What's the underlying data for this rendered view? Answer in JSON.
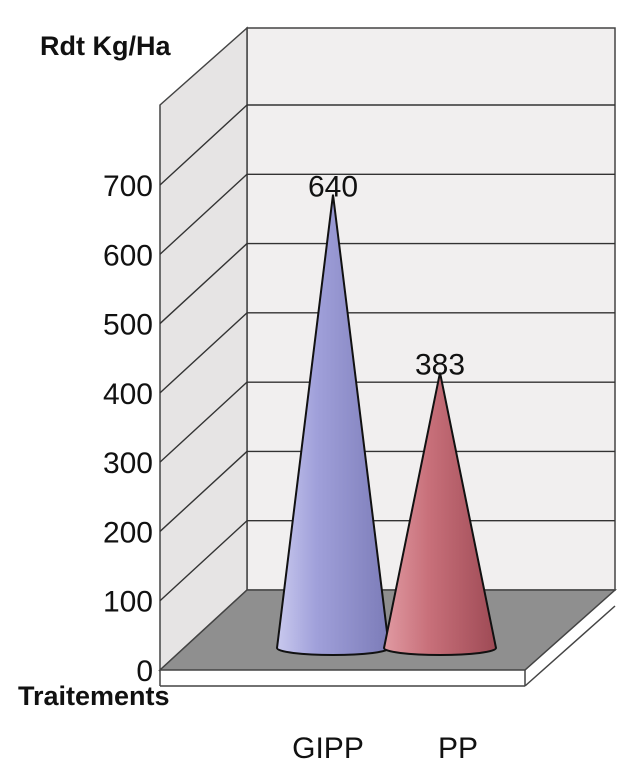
{
  "chart_data": {
    "type": "bar",
    "bar_shape": "cone",
    "ylabel": "Rdt Kg/Ha",
    "xlabel": "Traitements",
    "categories": [
      "GIPP",
      "PP"
    ],
    "values": [
      640,
      383
    ],
    "data_labels": [
      "640",
      "383"
    ],
    "colors": [
      "#9b9bd0",
      "#c46670"
    ],
    "ylim": [
      0,
      700
    ],
    "yticks": [
      "0",
      "100",
      "200",
      "300",
      "400",
      "500",
      "600",
      "700"
    ],
    "grid": true
  }
}
